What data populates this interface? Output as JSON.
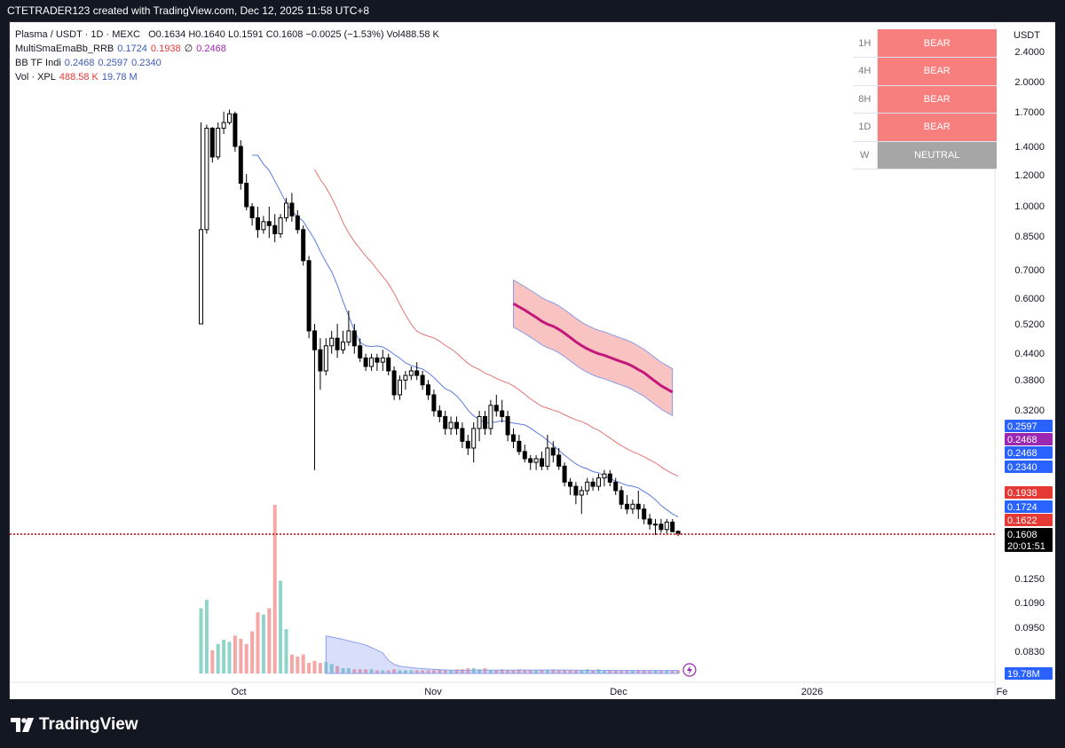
{
  "header": {
    "attribution": "CTETRADER123 created with TradingView.com, Dec 12, 2025 11:58 UTC+8"
  },
  "footer": {
    "brand": "TradingView",
    "logo_icon": "tradingview-logo-icon"
  },
  "legend": {
    "symbol_line": "Plasma / USDT · 1D · MEXC",
    "ohlc": "O0.1634  H0.1640  L0.1591  C0.1608  −0.0025 (−1.53%)  Vol488.58 K",
    "indicators": [
      {
        "name": "MultiSmaEmaBb_RRB",
        "values": [
          "0.1724",
          "0.1938",
          "∅",
          "0.2468"
        ],
        "colors": [
          "#3c5ab4",
          "#e53935",
          "#131722",
          "#9c27b0"
        ]
      },
      {
        "name": "BB TF Indi",
        "values": [
          "0.2468",
          "0.2597",
          "0.2340"
        ],
        "colors": [
          "#3c5ab4",
          "#3c5ab4",
          "#3c5ab4"
        ]
      },
      {
        "name": "Vol · XPL",
        "values": [
          "488.58 K",
          "19.78 M"
        ],
        "colors": [
          "#e53935",
          "#3c5ab4"
        ]
      }
    ]
  },
  "trend_table": {
    "rows": [
      {
        "tf": "1H",
        "state": "BEAR",
        "color": "#f7807f"
      },
      {
        "tf": "4H",
        "state": "BEAR",
        "color": "#f7807f"
      },
      {
        "tf": "8H",
        "state": "BEAR",
        "color": "#f7807f"
      },
      {
        "tf": "1D",
        "state": "BEAR",
        "color": "#f7807f"
      },
      {
        "tf": "W",
        "state": "NEUTRAL",
        "color": "#a6a6a6"
      }
    ]
  },
  "price_axis": {
    "currency": "USDT",
    "tick_labels": [
      "2.4000",
      "2.0000",
      "1.7000",
      "1.4000",
      "1.2000",
      "1.0000",
      "0.8500",
      "0.7000",
      "0.6000",
      "0.5200",
      "0.4400",
      "0.3800",
      "0.3200",
      "0.1250",
      "0.1090",
      "0.0950",
      "0.0830"
    ],
    "badges": [
      {
        "text": "0.2597",
        "color": "#2962ff"
      },
      {
        "text": "0.2468",
        "color": "#9c27b0"
      },
      {
        "text": "0.2468",
        "color": "#2962ff"
      },
      {
        "text": "0.2340",
        "color": "#2962ff"
      },
      {
        "text": "0.1938",
        "color": "#e53935"
      },
      {
        "text": "0.1724",
        "color": "#2962ff"
      },
      {
        "text": "0.1622",
        "color": "#e53935"
      },
      {
        "text": "0.1608",
        "color": "#000000"
      },
      {
        "text": "20:01:51",
        "color": "#000000"
      },
      {
        "text": "19.78M",
        "color": "#2962ff"
      }
    ]
  },
  "time_axis": {
    "labels": [
      "Oct",
      "Nov",
      "Dec",
      "2026",
      "Fe"
    ]
  },
  "chart_data": {
    "type": "candlestick",
    "scale": "log",
    "x_labels": [
      "Oct",
      "Nov",
      "Dec",
      "2026"
    ],
    "ohlc_days": [
      [
        0.52,
        1.6,
        0.7,
        0.88
      ],
      [
        0.88,
        1.58,
        0.86,
        1.55
      ],
      [
        1.55,
        1.56,
        1.28,
        1.32
      ],
      [
        1.32,
        1.6,
        1.3,
        1.55
      ],
      [
        1.55,
        1.7,
        1.5,
        1.6
      ],
      [
        1.6,
        1.72,
        1.58,
        1.68
      ],
      [
        1.68,
        1.7,
        1.36,
        1.4
      ],
      [
        1.4,
        1.45,
        1.1,
        1.14
      ],
      [
        1.14,
        1.2,
        0.98,
        1.0
      ],
      [
        1.0,
        1.02,
        0.9,
        0.94
      ],
      [
        0.94,
        1.0,
        0.84,
        0.88
      ],
      [
        0.88,
        0.95,
        0.86,
        0.92
      ],
      [
        0.92,
        1.0,
        0.84,
        0.9
      ],
      [
        0.9,
        0.96,
        0.82,
        0.86
      ],
      [
        0.86,
        0.96,
        0.84,
        0.94
      ],
      [
        0.94,
        1.05,
        0.92,
        1.02
      ],
      [
        1.02,
        1.08,
        0.92,
        0.95
      ],
      [
        0.95,
        0.98,
        0.86,
        0.88
      ],
      [
        0.88,
        0.9,
        0.72,
        0.74
      ],
      [
        0.74,
        0.76,
        0.48,
        0.5
      ],
      [
        0.5,
        0.52,
        0.23,
        0.45
      ],
      [
        0.45,
        0.48,
        0.36,
        0.4
      ],
      [
        0.4,
        0.48,
        0.39,
        0.46
      ],
      [
        0.46,
        0.5,
        0.44,
        0.48
      ],
      [
        0.48,
        0.52,
        0.43,
        0.45
      ],
      [
        0.45,
        0.5,
        0.44,
        0.47
      ],
      [
        0.47,
        0.56,
        0.46,
        0.5
      ],
      [
        0.5,
        0.52,
        0.44,
        0.46
      ],
      [
        0.46,
        0.48,
        0.42,
        0.43
      ],
      [
        0.43,
        0.44,
        0.4,
        0.41
      ],
      [
        0.41,
        0.44,
        0.4,
        0.43
      ],
      [
        0.43,
        0.44,
        0.4,
        0.42
      ],
      [
        0.42,
        0.45,
        0.4,
        0.43
      ],
      [
        0.43,
        0.44,
        0.39,
        0.4
      ],
      [
        0.4,
        0.41,
        0.34,
        0.35
      ],
      [
        0.35,
        0.39,
        0.34,
        0.38
      ],
      [
        0.38,
        0.4,
        0.36,
        0.39
      ],
      [
        0.39,
        0.41,
        0.38,
        0.4
      ],
      [
        0.4,
        0.42,
        0.38,
        0.39
      ],
      [
        0.39,
        0.4,
        0.36,
        0.37
      ],
      [
        0.37,
        0.38,
        0.34,
        0.35
      ],
      [
        0.35,
        0.36,
        0.31,
        0.32
      ],
      [
        0.32,
        0.33,
        0.3,
        0.31
      ],
      [
        0.31,
        0.32,
        0.28,
        0.29
      ],
      [
        0.29,
        0.31,
        0.28,
        0.3
      ],
      [
        0.3,
        0.31,
        0.28,
        0.29
      ],
      [
        0.29,
        0.3,
        0.26,
        0.27
      ],
      [
        0.27,
        0.28,
        0.25,
        0.26
      ],
      [
        0.26,
        0.3,
        0.24,
        0.29
      ],
      [
        0.29,
        0.32,
        0.27,
        0.31
      ],
      [
        0.31,
        0.32,
        0.28,
        0.29
      ],
      [
        0.29,
        0.34,
        0.28,
        0.33
      ],
      [
        0.33,
        0.35,
        0.31,
        0.32
      ],
      [
        0.32,
        0.34,
        0.3,
        0.31
      ],
      [
        0.31,
        0.32,
        0.27,
        0.28
      ],
      [
        0.28,
        0.29,
        0.26,
        0.27
      ],
      [
        0.27,
        0.28,
        0.25,
        0.255
      ],
      [
        0.255,
        0.265,
        0.24,
        0.245
      ],
      [
        0.245,
        0.25,
        0.23,
        0.24
      ],
      [
        0.24,
        0.25,
        0.23,
        0.245
      ],
      [
        0.245,
        0.255,
        0.23,
        0.235
      ],
      [
        0.235,
        0.28,
        0.23,
        0.26
      ],
      [
        0.26,
        0.27,
        0.24,
        0.25
      ],
      [
        0.25,
        0.26,
        0.23,
        0.235
      ],
      [
        0.235,
        0.24,
        0.21,
        0.215
      ],
      [
        0.215,
        0.22,
        0.2,
        0.21
      ],
      [
        0.21,
        0.215,
        0.19,
        0.2
      ],
      [
        0.2,
        0.21,
        0.18,
        0.205
      ],
      [
        0.205,
        0.22,
        0.2,
        0.215
      ],
      [
        0.215,
        0.22,
        0.205,
        0.21
      ],
      [
        0.21,
        0.225,
        0.205,
        0.22
      ],
      [
        0.22,
        0.23,
        0.21,
        0.225
      ],
      [
        0.225,
        0.23,
        0.21,
        0.215
      ],
      [
        0.215,
        0.22,
        0.2,
        0.205
      ],
      [
        0.205,
        0.21,
        0.185,
        0.19
      ],
      [
        0.19,
        0.2,
        0.18,
        0.185
      ],
      [
        0.185,
        0.195,
        0.18,
        0.19
      ],
      [
        0.19,
        0.205,
        0.175,
        0.185
      ],
      [
        0.185,
        0.19,
        0.17,
        0.175
      ],
      [
        0.175,
        0.18,
        0.165,
        0.17
      ],
      [
        0.17,
        0.175,
        0.16,
        0.17
      ],
      [
        0.17,
        0.175,
        0.162,
        0.165
      ],
      [
        0.165,
        0.175,
        0.16,
        0.172
      ],
      [
        0.172,
        0.175,
        0.165,
        0.163
      ],
      [
        0.1634,
        0.164,
        0.1591,
        0.1608
      ]
    ],
    "volume": [
      62,
      70,
      22,
      28,
      32,
      30,
      36,
      33,
      28,
      40,
      58,
      56,
      62,
      160,
      88,
      42,
      18,
      16,
      18,
      10,
      12,
      10,
      11,
      9,
      7,
      5,
      5,
      4,
      4,
      4,
      4,
      3,
      3,
      3,
      4,
      3,
      3,
      3,
      3,
      3,
      3,
      3,
      4,
      3,
      3,
      4,
      4,
      5,
      5,
      4,
      5,
      3,
      3,
      4,
      3,
      3,
      4,
      3,
      3,
      3,
      3,
      3,
      4,
      3,
      3,
      3,
      3,
      3,
      4,
      3,
      4,
      3,
      3,
      3,
      3,
      3,
      3,
      3,
      3,
      3,
      3,
      3,
      3,
      3,
      3
    ]
  }
}
